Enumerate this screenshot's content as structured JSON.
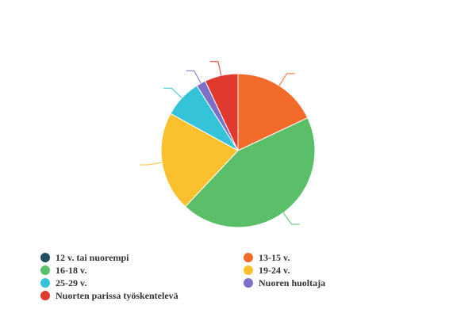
{
  "chart_data": {
    "type": "pie",
    "categories": [
      "12 v. tai nuorempi",
      "13-15 v.",
      "16-18 v.",
      "19-24 v.",
      "25-29 v.",
      "Nuoren huoltaja",
      "Nuorten parissa työskentelevä"
    ],
    "values": [
      0,
      18,
      44,
      21,
      8,
      2,
      7
    ],
    "colors": [
      "#1f4e5f",
      "#f26b2a",
      "#5bbf6a",
      "#fbc02d",
      "#35c3d9",
      "#7e6fc7",
      "#e0392e"
    ],
    "legend": "bottom"
  }
}
